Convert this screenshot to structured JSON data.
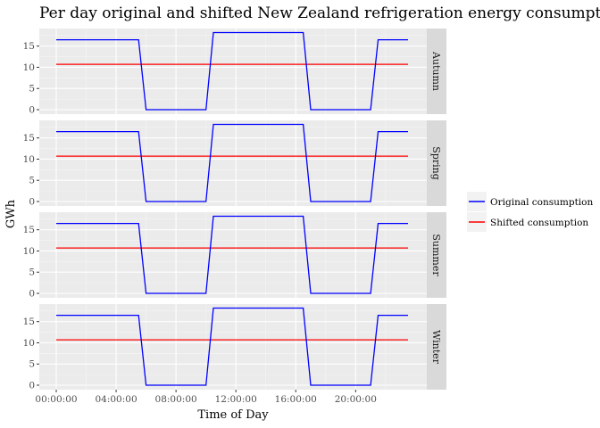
{
  "chart_data": {
    "type": "line",
    "title": "Per day original and shifted New Zealand refrigeration energy consumption by season",
    "xlabel": "Time of Day",
    "ylabel": "GWh",
    "x_ticks": [
      {
        "value": 0,
        "label": "00:00:00"
      },
      {
        "value": 4,
        "label": "04:00:00"
      },
      {
        "value": 8,
        "label": "08:00:00"
      },
      {
        "value": 12,
        "label": "12:00:00"
      },
      {
        "value": 16,
        "label": "16:00:00"
      },
      {
        "value": 20,
        "label": "20:00:00"
      }
    ],
    "y_ticks": [
      0,
      5,
      10,
      15
    ],
    "xlim": [
      0,
      23.5
    ],
    "ylim": [
      0,
      18.3
    ],
    "grid": true,
    "legend_position": "right",
    "series": [
      {
        "name": "Original consumption",
        "color": "#0000ff"
      },
      {
        "name": "Shifted consumption",
        "color": "#ff0000"
      }
    ],
    "panels": [
      {
        "facet": "Autumn",
        "original": {
          "x": [
            0,
            5.5,
            6,
            10,
            10.5,
            16.5,
            17,
            21,
            21.5,
            23.5
          ],
          "y": [
            16.5,
            16.5,
            0,
            0,
            18.2,
            18.2,
            0,
            0,
            16.5,
            16.5
          ]
        },
        "shifted": {
          "x": [
            0,
            23.5
          ],
          "y": [
            10.7,
            10.7
          ]
        }
      },
      {
        "facet": "Spring",
        "original": {
          "x": [
            0,
            5.5,
            6,
            10,
            10.5,
            16.5,
            17,
            21,
            21.5,
            23.5
          ],
          "y": [
            16.5,
            16.5,
            0,
            0,
            18.2,
            18.2,
            0,
            0,
            16.5,
            16.5
          ]
        },
        "shifted": {
          "x": [
            0,
            23.5
          ],
          "y": [
            10.7,
            10.7
          ]
        }
      },
      {
        "facet": "Summer",
        "original": {
          "x": [
            0,
            5.5,
            6,
            10,
            10.5,
            16.5,
            17,
            21,
            21.5,
            23.5
          ],
          "y": [
            16.5,
            16.5,
            0,
            0,
            18.2,
            18.2,
            0,
            0,
            16.5,
            16.5
          ]
        },
        "shifted": {
          "x": [
            0,
            23.5
          ],
          "y": [
            10.7,
            10.7
          ]
        }
      },
      {
        "facet": "Winter",
        "original": {
          "x": [
            0,
            5.5,
            6,
            10,
            10.5,
            16.5,
            17,
            21,
            21.5,
            23.5
          ],
          "y": [
            16.5,
            16.5,
            0,
            0,
            18.2,
            18.2,
            0,
            0,
            16.5,
            16.5
          ]
        },
        "shifted": {
          "x": [
            0,
            23.5
          ],
          "y": [
            10.7,
            10.7
          ]
        }
      }
    ]
  }
}
